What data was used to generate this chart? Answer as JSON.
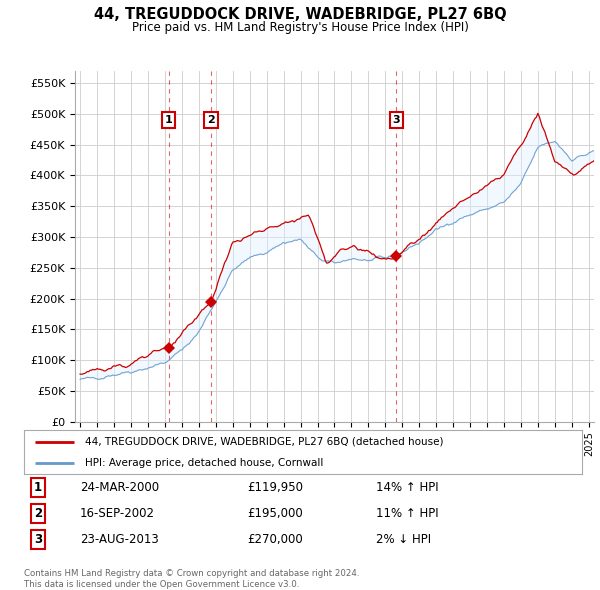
{
  "title": "44, TREGUDDOCK DRIVE, WADEBRIDGE, PL27 6BQ",
  "subtitle": "Price paid vs. HM Land Registry's House Price Index (HPI)",
  "ylabel_ticks": [
    "£0",
    "£50K",
    "£100K",
    "£150K",
    "£200K",
    "£250K",
    "£300K",
    "£350K",
    "£400K",
    "£450K",
    "£500K",
    "£550K"
  ],
  "ytick_values": [
    0,
    50000,
    100000,
    150000,
    200000,
    250000,
    300000,
    350000,
    400000,
    450000,
    500000,
    550000
  ],
  "ylim": [
    0,
    570000
  ],
  "x_start_year": 1995,
  "x_end_year": 2025,
  "sale_points": [
    {
      "year": 2000.23,
      "price": 119950,
      "label": "1"
    },
    {
      "year": 2002.71,
      "price": 195000,
      "label": "2"
    },
    {
      "year": 2013.64,
      "price": 270000,
      "label": "3"
    }
  ],
  "legend_line1": "44, TREGUDDOCK DRIVE, WADEBRIDGE, PL27 6BQ (detached house)",
  "legend_line2": "HPI: Average price, detached house, Cornwall",
  "table_rows": [
    {
      "num": "1",
      "date": "24-MAR-2000",
      "price": "£119,950",
      "change": "14% ↑ HPI"
    },
    {
      "num": "2",
      "date": "16-SEP-2002",
      "price": "£195,000",
      "change": "11% ↑ HPI"
    },
    {
      "num": "3",
      "date": "23-AUG-2013",
      "price": "£270,000",
      "change": "2% ↓ HPI"
    }
  ],
  "footnote": "Contains HM Land Registry data © Crown copyright and database right 2024.\nThis data is licensed under the Open Government Licence v3.0.",
  "line_color_red": "#cc0000",
  "line_color_blue": "#6699cc",
  "fill_color_blue": "#ddeeff",
  "grid_color": "#cccccc",
  "bg_color": "#ffffff",
  "sale_marker_color": "#cc0000",
  "sale_label_box_color": "#cc0000"
}
